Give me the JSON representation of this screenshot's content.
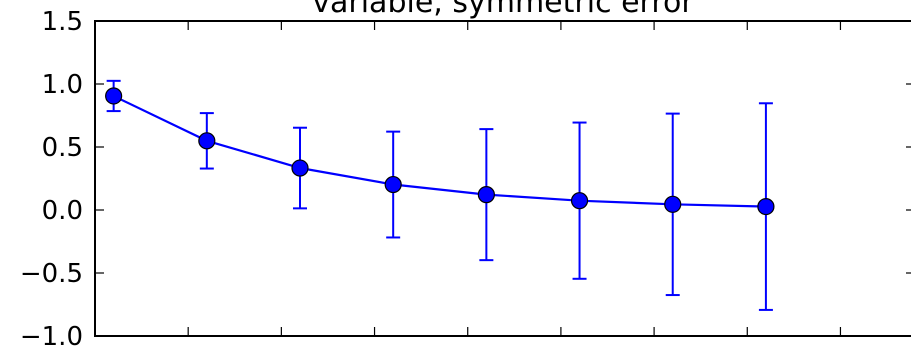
{
  "chart_data": {
    "type": "line",
    "title": "variable, symmetric error",
    "xlabel": "",
    "ylabel": "",
    "x": [
      0.1,
      0.6,
      1.1,
      1.6,
      2.1,
      2.6,
      3.1,
      3.6
    ],
    "xlim": [
      0,
      4.4
    ],
    "ylim": [
      -1.0,
      1.5
    ],
    "yticks": [
      1.5,
      1.0,
      0.5,
      0.0,
      -0.5,
      -1.0
    ],
    "ytick_labels": [
      "1.5",
      "1.0",
      "0.5",
      "0.0",
      "−0.5",
      "−1.0"
    ],
    "xticks": [
      0.5,
      1.0,
      1.5,
      2.0,
      2.5,
      3.0,
      3.5,
      4.0
    ],
    "grid": false,
    "series": [
      {
        "values": [
          0.905,
          0.549,
          0.333,
          0.202,
          0.122,
          0.074,
          0.045,
          0.027
        ],
        "yerr": [
          0.12,
          0.22,
          0.32,
          0.42,
          0.52,
          0.62,
          0.72,
          0.82
        ],
        "color": "#0000ff",
        "marker": "circle"
      }
    ]
  }
}
